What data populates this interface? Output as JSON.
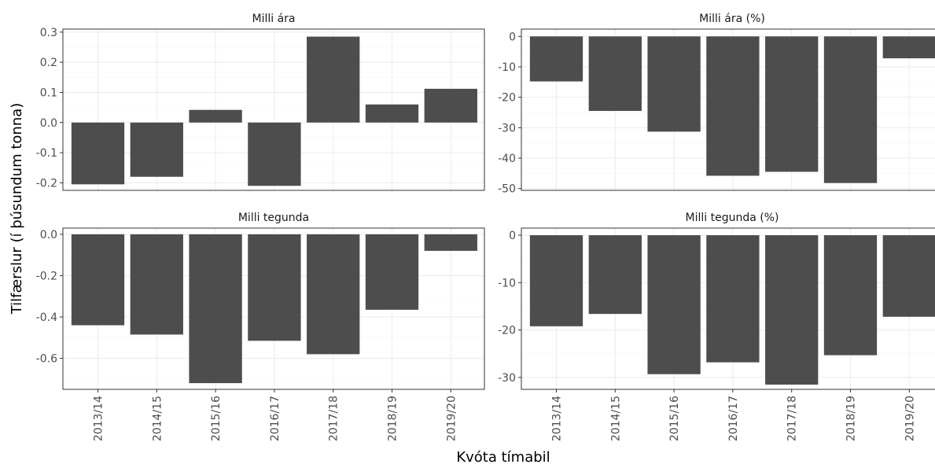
{
  "chart_data": {
    "type": "bar",
    "layout": "facet-grid 2x2",
    "ylabel": "Tilfærslur (í þúsundum tonna)",
    "xlabel": "Kvóta tímabil",
    "categories": [
      "2013/14",
      "2014/15",
      "2015/16",
      "2016/17",
      "2017/18",
      "2018/19",
      "2019/20"
    ],
    "bar_color": "#4d4d4d",
    "grid": true,
    "panels": [
      {
        "title": "Milli ára",
        "values": [
          -0.205,
          -0.18,
          0.042,
          -0.21,
          0.285,
          0.06,
          0.112
        ],
        "ylim": [
          -0.225,
          0.31
        ],
        "yticks": [
          -0.2,
          -0.1,
          0.0,
          0.1,
          0.2,
          0.3
        ],
        "ytick_labels": [
          "-0.2",
          "-0.1",
          "0.0",
          "0.1",
          "0.2",
          "0.3"
        ]
      },
      {
        "title": "Milli ára (%)",
        "values": [
          -14.8,
          -24.5,
          -31.3,
          -45.8,
          -44.5,
          -48.2,
          -7.2
        ],
        "ylim": [
          -50.6,
          2.4
        ],
        "yticks": [
          -50,
          -40,
          -30,
          -20,
          -10,
          0
        ],
        "ytick_labels": [
          "-50",
          "-40",
          "-30",
          "-20",
          "-10",
          "0"
        ]
      },
      {
        "title": "Milli tegunda",
        "values": [
          -0.44,
          -0.485,
          -0.72,
          -0.515,
          -0.58,
          -0.365,
          -0.08
        ],
        "ylim": [
          -0.75,
          0.03
        ],
        "yticks": [
          -0.6,
          -0.4,
          -0.2,
          0.0
        ],
        "ytick_labels": [
          "-0.6",
          "-0.4",
          "-0.2",
          "0.0"
        ]
      },
      {
        "title": "Milli tegunda (%)",
        "values": [
          -19.2,
          -16.6,
          -29.3,
          -26.8,
          -31.5,
          -25.3,
          -17.2
        ],
        "ylim": [
          -32.5,
          1.5
        ],
        "yticks": [
          -30,
          -20,
          -10,
          0
        ],
        "ytick_labels": [
          "-30",
          "-20",
          "-10",
          "0"
        ]
      }
    ]
  }
}
